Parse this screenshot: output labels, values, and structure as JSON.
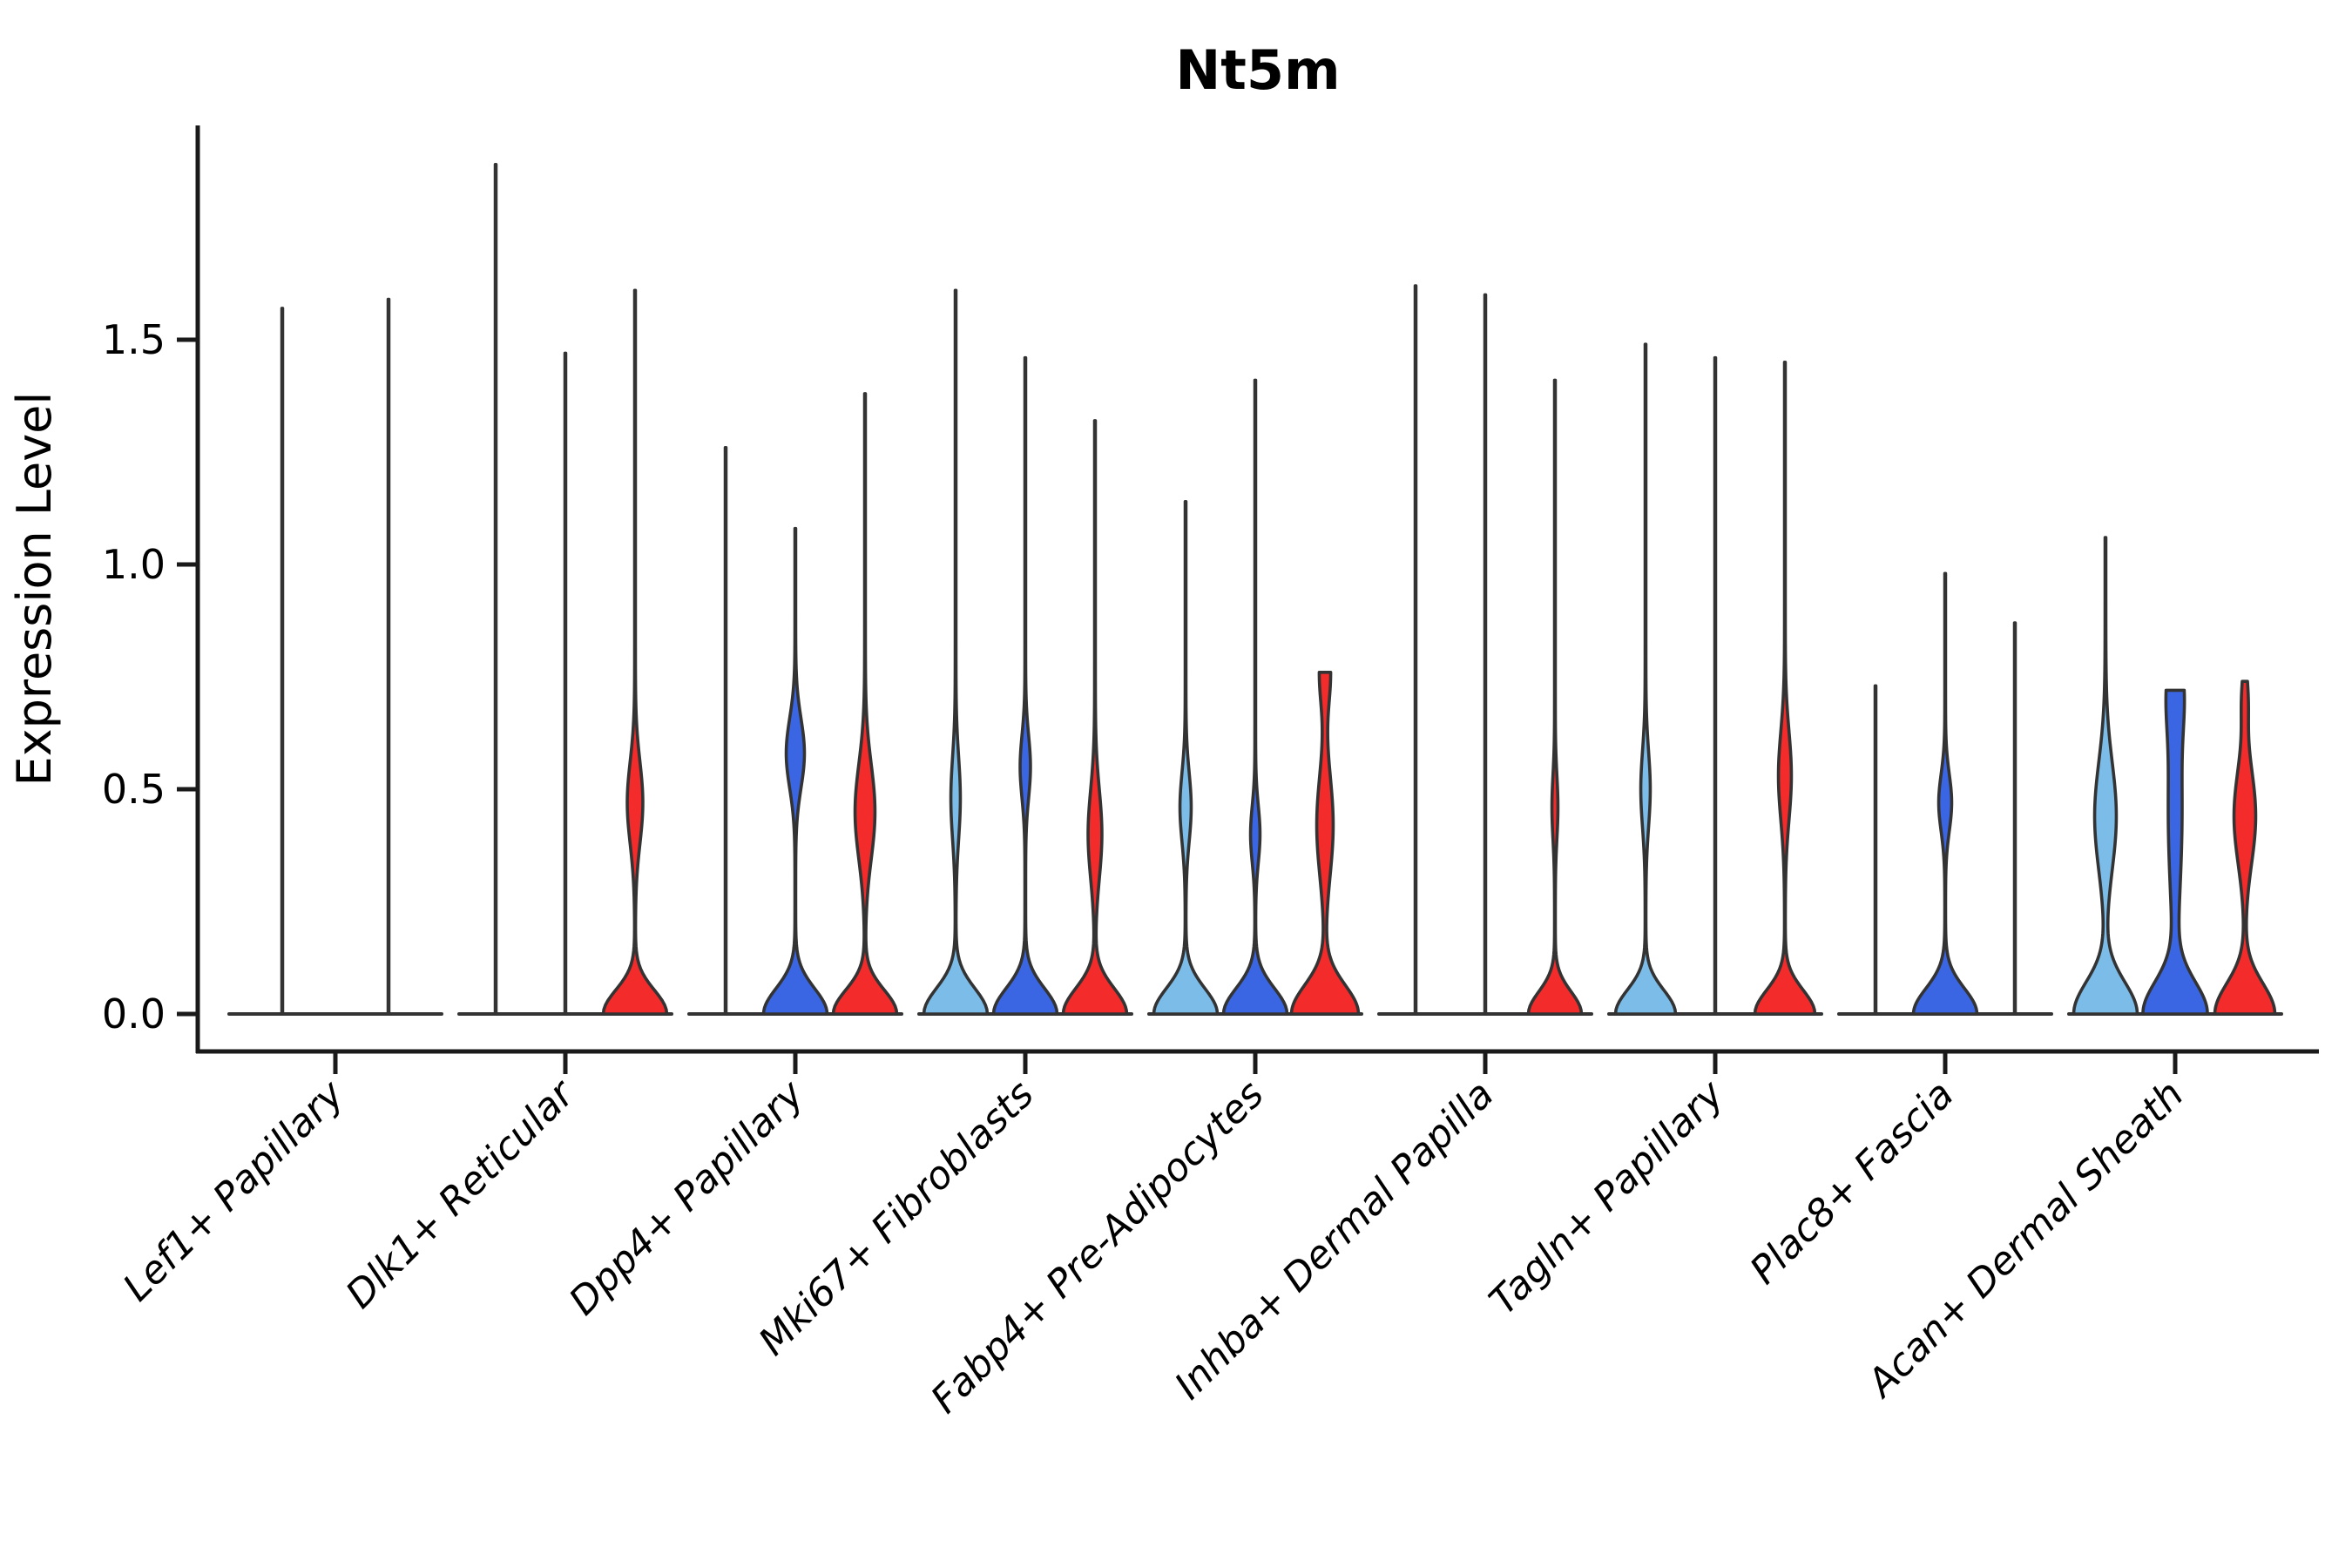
{
  "figure": {
    "title": "Nt5m",
    "ylabel": "Expression Level",
    "background": "#ffffff"
  },
  "colors": {
    "light_blue": "#7BBDE8",
    "dark_blue": "#3B66E3",
    "red": "#F32B2B",
    "outline": "#333333",
    "axis": "#1a1a1a"
  },
  "chart_data": {
    "type": "violin",
    "title": "Nt5m",
    "ylabel": "Expression Level",
    "xlabel": "",
    "ylim": [
      0,
      1.98
    ],
    "yticks": [
      "0.0",
      "0.5",
      "1.0",
      "1.5"
    ],
    "ytick_values": [
      0.0,
      0.5,
      1.0,
      1.5
    ],
    "grid": false,
    "legend": "none",
    "series_order": [
      "light_blue",
      "dark_blue",
      "red"
    ],
    "note_units": "bumps = density bulges [center_expression, spread, extra_half_width_px]; base = zero-expression flare [spread, extra_half_width_px]; max = top of violin in Expression Level units",
    "groups": [
      {
        "label": "Lef1+ Papillary",
        "violins": [
          {
            "series": "light_blue",
            "dx": -61,
            "max": 1.57,
            "bumps": [],
            "base": null
          },
          {
            "series": "dark_blue",
            "dx": 61,
            "max": 1.59,
            "bumps": [],
            "base": null
          }
        ]
      },
      {
        "label": "Dlk1+ Reticular",
        "violins": [
          {
            "series": "light_blue",
            "dx": -80,
            "max": 1.89,
            "bumps": [],
            "base": null
          },
          {
            "series": "dark_blue",
            "dx": 0,
            "max": 1.47,
            "bumps": [],
            "base": null
          },
          {
            "series": "red",
            "dx": 80,
            "max": 1.61,
            "bumps": [
              [
                0.47,
                0.13,
                8.5
              ]
            ],
            "base": [
              0.075,
              36
            ]
          }
        ]
      },
      {
        "label": "Dpp4+ Papillary",
        "violins": [
          {
            "series": "light_blue",
            "dx": -80,
            "max": 1.26,
            "bumps": [],
            "base": null
          },
          {
            "series": "dark_blue",
            "dx": 0,
            "max": 1.08,
            "bumps": [
              [
                0.58,
                0.11,
                10
              ]
            ],
            "base": [
              0.08,
              36
            ]
          },
          {
            "series": "red",
            "dx": 80,
            "max": 1.38,
            "bumps": [
              [
                0.45,
                0.15,
                11
              ]
            ],
            "base": [
              0.075,
              36
            ]
          }
        ]
      },
      {
        "label": "Mki67+ Fibroblasts",
        "violins": [
          {
            "series": "light_blue",
            "dx": -80,
            "max": 1.61,
            "bumps": [
              [
                0.48,
                0.13,
                5
              ]
            ],
            "base": [
              0.08,
              36
            ]
          },
          {
            "series": "dark_blue",
            "dx": 0,
            "max": 1.46,
            "bumps": [
              [
                0.55,
                0.1,
                5.5
              ]
            ],
            "base": [
              0.08,
              36
            ]
          },
          {
            "series": "red",
            "dx": 80,
            "max": 1.32,
            "bumps": [
              [
                0.4,
                0.14,
                7.5
              ]
            ],
            "base": [
              0.08,
              36
            ]
          }
        ]
      },
      {
        "label": "Fabp4+ Pre-Adipocytes",
        "violins": [
          {
            "series": "light_blue",
            "dx": -80,
            "max": 1.14,
            "bumps": [
              [
                0.46,
                0.11,
                6
              ]
            ],
            "base": [
              0.08,
              36
            ]
          },
          {
            "series": "dark_blue",
            "dx": 0,
            "max": 1.41,
            "bumps": [
              [
                0.4,
                0.09,
                5
              ]
            ],
            "base": [
              0.08,
              36
            ]
          },
          {
            "series": "red",
            "dx": 80,
            "max": 0.76,
            "bumps": [
              [
                0.42,
                0.16,
                9
              ],
              [
                0.76,
                0.1,
                6
              ]
            ],
            "base": [
              0.09,
              38
            ]
          }
        ]
      },
      {
        "label": "Inhba+ Dermal Papilla",
        "violins": [
          {
            "series": "light_blue",
            "dx": -80,
            "max": 1.62,
            "bumps": [],
            "base": null
          },
          {
            "series": "dark_blue",
            "dx": 0,
            "max": 1.6,
            "bumps": [],
            "base": null
          },
          {
            "series": "red",
            "dx": 80,
            "max": 1.41,
            "bumps": [
              [
                0.46,
                0.1,
                3
              ]
            ],
            "base": [
              0.07,
              30
            ]
          }
        ]
      },
      {
        "label": "Tagln+ Papillary",
        "violins": [
          {
            "series": "light_blue",
            "dx": -80,
            "max": 1.49,
            "bumps": [
              [
                0.5,
                0.12,
                5
              ]
            ],
            "base": [
              0.075,
              34
            ]
          },
          {
            "series": "dark_blue",
            "dx": 0,
            "max": 1.46,
            "bumps": [],
            "base": null
          },
          {
            "series": "red",
            "dx": 80,
            "max": 1.45,
            "bumps": [
              [
                0.53,
                0.14,
                7
              ]
            ],
            "base": [
              0.075,
              34
            ]
          }
        ]
      },
      {
        "label": "Plac8+ Fascia",
        "violins": [
          {
            "series": "light_blue",
            "dx": -80,
            "max": 0.73,
            "bumps": [],
            "base": null
          },
          {
            "series": "dark_blue",
            "dx": 0,
            "max": 0.98,
            "bumps": [
              [
                0.47,
                0.09,
                7
              ]
            ],
            "base": [
              0.08,
              36
            ]
          },
          {
            "series": "red",
            "dx": 80,
            "max": 0.87,
            "bumps": [],
            "base": null
          }
        ]
      },
      {
        "label": "Acan+ Dermal Sheath",
        "violins": [
          {
            "series": "light_blue",
            "dx": -80,
            "max": 1.06,
            "bumps": [
              [
                0.44,
                0.17,
                12
              ]
            ],
            "base": [
              0.1,
              36
            ]
          },
          {
            "series": "dark_blue",
            "dx": 0,
            "max": 0.72,
            "bumps": [
              [
                0.45,
                0.28,
                7.5
              ],
              [
                0.72,
                0.12,
                7
              ]
            ],
            "base": [
              0.1,
              36
            ]
          },
          {
            "series": "red",
            "dx": 80,
            "max": 0.74,
            "bumps": [
              [
                0.44,
                0.15,
                12
              ],
              [
                0.7,
                0.08,
                3
              ]
            ],
            "base": [
              0.095,
              34
            ]
          }
        ]
      }
    ]
  }
}
